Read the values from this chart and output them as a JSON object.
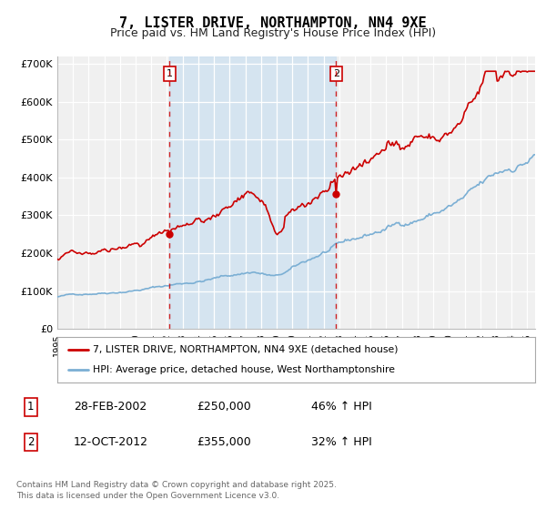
{
  "title": "7, LISTER DRIVE, NORTHAMPTON, NN4 9XE",
  "subtitle": "Price paid vs. HM Land Registry's House Price Index (HPI)",
  "title_fontsize": 11,
  "subtitle_fontsize": 9,
  "background_color": "#ffffff",
  "plot_bg_color": "#f0f0f0",
  "red_line_color": "#cc0000",
  "blue_line_color": "#7bafd4",
  "shade_color": "#cce0f0",
  "vline_color": "#cc0000",
  "ylim": [
    0,
    720000
  ],
  "yticks": [
    0,
    100000,
    200000,
    300000,
    400000,
    500000,
    600000,
    700000
  ],
  "ytick_labels": [
    "£0",
    "£100K",
    "£200K",
    "£300K",
    "£400K",
    "£500K",
    "£600K",
    "£700K"
  ],
  "sale1_x": 2002.164,
  "sale1_y": 250000,
  "sale2_x": 2012.79,
  "sale2_y": 355000,
  "legend_line1": "7, LISTER DRIVE, NORTHAMPTON, NN4 9XE (detached house)",
  "legend_line2": "HPI: Average price, detached house, West Northamptonshire",
  "table_row1": [
    "1",
    "28-FEB-2002",
    "£250,000",
    "46% ↑ HPI"
  ],
  "table_row2": [
    "2",
    "12-OCT-2012",
    "£355,000",
    "32% ↑ HPI"
  ],
  "footnote": "Contains HM Land Registry data © Crown copyright and database right 2025.\nThis data is licensed under the Open Government Licence v3.0.",
  "xmin": 1995,
  "xmax": 2025.5
}
